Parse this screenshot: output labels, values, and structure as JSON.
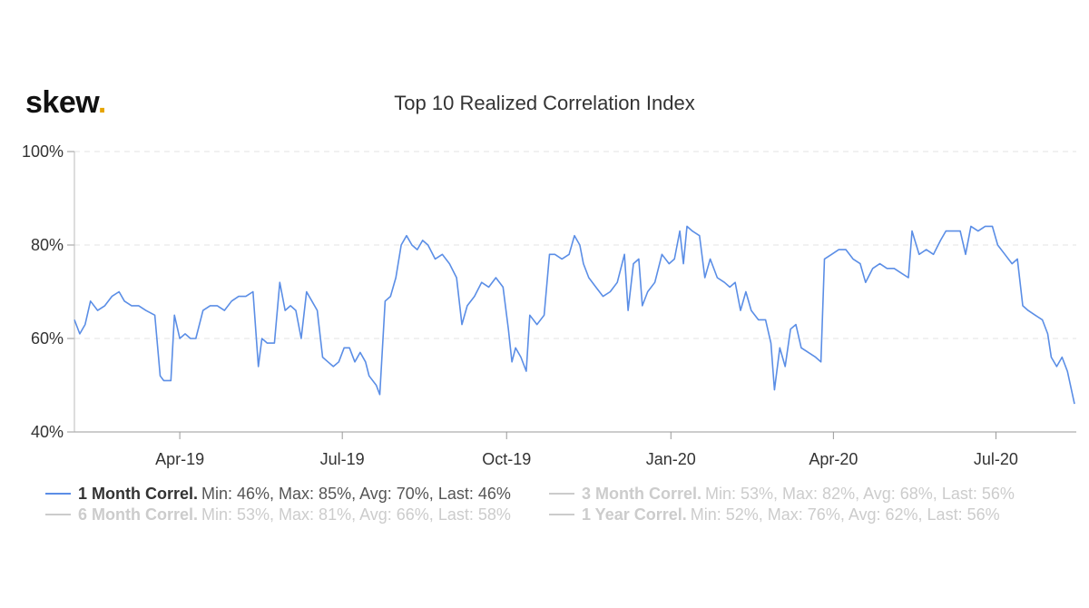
{
  "logo": {
    "text": "skew",
    "dot": "."
  },
  "chart_data": {
    "type": "line",
    "title": "Top 10 Realized Correlation Index",
    "xlabel": "",
    "ylabel": "",
    "ylim": [
      40,
      100
    ],
    "y_ticks": [
      40,
      60,
      80,
      100
    ],
    "y_tick_labels": [
      "40%",
      "60%",
      "80%",
      "100%"
    ],
    "xlim": [
      "2019-02-01",
      "2020-08-15"
    ],
    "x_ticks": [
      "2019-04-01",
      "2019-07-01",
      "2019-10-01",
      "2020-01-01",
      "2020-04-01",
      "2020-07-01"
    ],
    "x_tick_labels": [
      "Apr-19",
      "Jul-19",
      "Oct-19",
      "Jan-20",
      "Apr-20",
      "Jul-20"
    ],
    "grid": "horizontal-dashed",
    "legend_position": "bottom",
    "colors": {
      "active": "#5b8ee6",
      "inactive": "#cccccc",
      "text": "#333333"
    },
    "series": [
      {
        "name": "1 Month Correl.",
        "stats": "Min: 46%, Max: 85%, Avg: 70%, Last: 46%",
        "visible": true,
        "points": [
          [
            "2019-02-01",
            64
          ],
          [
            "2019-02-04",
            61
          ],
          [
            "2019-02-07",
            63
          ],
          [
            "2019-02-10",
            68
          ],
          [
            "2019-02-14",
            66
          ],
          [
            "2019-02-18",
            67
          ],
          [
            "2019-02-22",
            69
          ],
          [
            "2019-02-26",
            70
          ],
          [
            "2019-03-01",
            68
          ],
          [
            "2019-03-05",
            67
          ],
          [
            "2019-03-09",
            67
          ],
          [
            "2019-03-13",
            66
          ],
          [
            "2019-03-18",
            65
          ],
          [
            "2019-03-21",
            52
          ],
          [
            "2019-03-23",
            51
          ],
          [
            "2019-03-27",
            51
          ],
          [
            "2019-03-29",
            65
          ],
          [
            "2019-04-01",
            60
          ],
          [
            "2019-04-04",
            61
          ],
          [
            "2019-04-07",
            60
          ],
          [
            "2019-04-10",
            60
          ],
          [
            "2019-04-14",
            66
          ],
          [
            "2019-04-18",
            67
          ],
          [
            "2019-04-22",
            67
          ],
          [
            "2019-04-26",
            66
          ],
          [
            "2019-04-30",
            68
          ],
          [
            "2019-05-04",
            69
          ],
          [
            "2019-05-08",
            69
          ],
          [
            "2019-05-12",
            70
          ],
          [
            "2019-05-15",
            54
          ],
          [
            "2019-05-17",
            60
          ],
          [
            "2019-05-20",
            59
          ],
          [
            "2019-05-24",
            59
          ],
          [
            "2019-05-27",
            72
          ],
          [
            "2019-05-30",
            66
          ],
          [
            "2019-06-02",
            67
          ],
          [
            "2019-06-05",
            66
          ],
          [
            "2019-06-08",
            60
          ],
          [
            "2019-06-11",
            70
          ],
          [
            "2019-06-14",
            68
          ],
          [
            "2019-06-17",
            66
          ],
          [
            "2019-06-20",
            56
          ],
          [
            "2019-06-23",
            55
          ],
          [
            "2019-06-26",
            54
          ],
          [
            "2019-06-29",
            55
          ],
          [
            "2019-07-02",
            58
          ],
          [
            "2019-07-05",
            58
          ],
          [
            "2019-07-08",
            55
          ],
          [
            "2019-07-11",
            57
          ],
          [
            "2019-07-14",
            55
          ],
          [
            "2019-07-16",
            52
          ],
          [
            "2019-07-20",
            50
          ],
          [
            "2019-07-22",
            48
          ],
          [
            "2019-07-25",
            68
          ],
          [
            "2019-07-28",
            69
          ],
          [
            "2019-07-31",
            73
          ],
          [
            "2019-08-03",
            80
          ],
          [
            "2019-08-06",
            82
          ],
          [
            "2019-08-09",
            80
          ],
          [
            "2019-08-12",
            79
          ],
          [
            "2019-08-15",
            81
          ],
          [
            "2019-08-18",
            80
          ],
          [
            "2019-08-22",
            77
          ],
          [
            "2019-08-26",
            78
          ],
          [
            "2019-08-30",
            76
          ],
          [
            "2019-09-03",
            73
          ],
          [
            "2019-09-06",
            63
          ],
          [
            "2019-09-09",
            67
          ],
          [
            "2019-09-13",
            69
          ],
          [
            "2019-09-17",
            72
          ],
          [
            "2019-09-21",
            71
          ],
          [
            "2019-09-25",
            73
          ],
          [
            "2019-09-29",
            71
          ],
          [
            "2019-10-02",
            62
          ],
          [
            "2019-10-04",
            55
          ],
          [
            "2019-10-06",
            58
          ],
          [
            "2019-10-09",
            56
          ],
          [
            "2019-10-12",
            53
          ],
          [
            "2019-10-14",
            65
          ],
          [
            "2019-10-18",
            63
          ],
          [
            "2019-10-22",
            65
          ],
          [
            "2019-10-25",
            78
          ],
          [
            "2019-10-28",
            78
          ],
          [
            "2019-11-01",
            77
          ],
          [
            "2019-11-05",
            78
          ],
          [
            "2019-11-08",
            82
          ],
          [
            "2019-11-11",
            80
          ],
          [
            "2019-11-13",
            76
          ],
          [
            "2019-11-16",
            73
          ],
          [
            "2019-11-20",
            71
          ],
          [
            "2019-11-24",
            69
          ],
          [
            "2019-11-28",
            70
          ],
          [
            "2019-12-02",
            72
          ],
          [
            "2019-12-06",
            78
          ],
          [
            "2019-12-08",
            66
          ],
          [
            "2019-12-11",
            76
          ],
          [
            "2019-12-14",
            77
          ],
          [
            "2019-12-16",
            67
          ],
          [
            "2019-12-19",
            70
          ],
          [
            "2019-12-23",
            72
          ],
          [
            "2019-12-27",
            78
          ],
          [
            "2019-12-31",
            76
          ],
          [
            "2020-01-03",
            77
          ],
          [
            "2020-01-06",
            83
          ],
          [
            "2020-01-08",
            76
          ],
          [
            "2020-01-10",
            84
          ],
          [
            "2020-01-13",
            83
          ],
          [
            "2020-01-17",
            82
          ],
          [
            "2020-01-20",
            73
          ],
          [
            "2020-01-23",
            77
          ],
          [
            "2020-01-27",
            73
          ],
          [
            "2020-01-31",
            72
          ],
          [
            "2020-02-03",
            71
          ],
          [
            "2020-02-06",
            72
          ],
          [
            "2020-02-09",
            66
          ],
          [
            "2020-02-12",
            70
          ],
          [
            "2020-02-15",
            66
          ],
          [
            "2020-02-19",
            64
          ],
          [
            "2020-02-23",
            64
          ],
          [
            "2020-02-26",
            59
          ],
          [
            "2020-02-28",
            49
          ],
          [
            "2020-03-02",
            58
          ],
          [
            "2020-03-05",
            54
          ],
          [
            "2020-03-08",
            62
          ],
          [
            "2020-03-11",
            63
          ],
          [
            "2020-03-14",
            58
          ],
          [
            "2020-03-18",
            57
          ],
          [
            "2020-03-22",
            56
          ],
          [
            "2020-03-25",
            55
          ],
          [
            "2020-03-27",
            77
          ],
          [
            "2020-03-31",
            78
          ],
          [
            "2020-04-04",
            79
          ],
          [
            "2020-04-08",
            79
          ],
          [
            "2020-04-12",
            77
          ],
          [
            "2020-04-16",
            76
          ],
          [
            "2020-04-19",
            72
          ],
          [
            "2020-04-23",
            75
          ],
          [
            "2020-04-27",
            76
          ],
          [
            "2020-05-01",
            75
          ],
          [
            "2020-05-05",
            75
          ],
          [
            "2020-05-09",
            74
          ],
          [
            "2020-05-13",
            73
          ],
          [
            "2020-05-15",
            83
          ],
          [
            "2020-05-19",
            78
          ],
          [
            "2020-05-23",
            79
          ],
          [
            "2020-05-27",
            78
          ],
          [
            "2020-05-31",
            81
          ],
          [
            "2020-06-03",
            83
          ],
          [
            "2020-06-07",
            83
          ],
          [
            "2020-06-11",
            83
          ],
          [
            "2020-06-14",
            78
          ],
          [
            "2020-06-17",
            84
          ],
          [
            "2020-06-21",
            83
          ],
          [
            "2020-06-25",
            84
          ],
          [
            "2020-06-29",
            84
          ],
          [
            "2020-07-02",
            80
          ],
          [
            "2020-07-06",
            78
          ],
          [
            "2020-07-10",
            76
          ],
          [
            "2020-07-13",
            77
          ],
          [
            "2020-07-16",
            67
          ],
          [
            "2020-07-19",
            66
          ],
          [
            "2020-07-23",
            65
          ],
          [
            "2020-07-27",
            64
          ],
          [
            "2020-07-30",
            61
          ],
          [
            "2020-08-01",
            56
          ],
          [
            "2020-08-04",
            54
          ],
          [
            "2020-08-07",
            56
          ],
          [
            "2020-08-10",
            53
          ],
          [
            "2020-08-14",
            46
          ]
        ]
      },
      {
        "name": "3 Month Correl.",
        "stats": "Min: 53%, Max: 82%, Avg: 68%, Last: 56%",
        "visible": false
      },
      {
        "name": "6 Month Correl.",
        "stats": "Min: 53%, Max: 81%, Avg: 66%, Last: 58%",
        "visible": false
      },
      {
        "name": "1 Year Correl.",
        "stats": "Min: 52%, Max: 76%, Avg: 62%, Last: 56%",
        "visible": false
      }
    ]
  }
}
